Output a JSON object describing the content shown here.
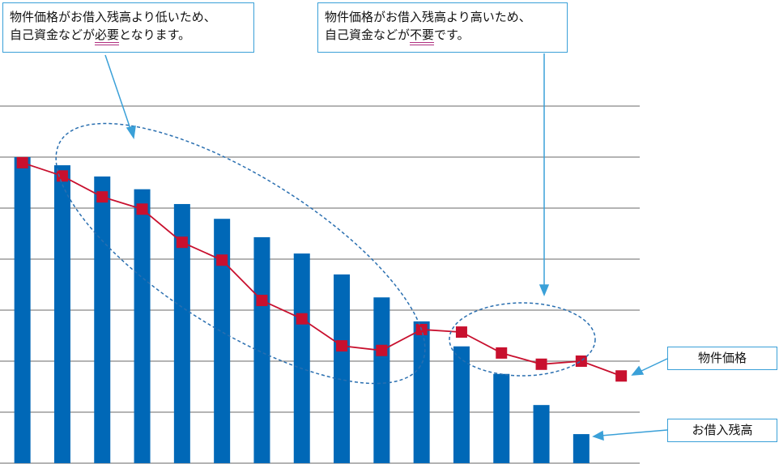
{
  "chart_data": {
    "type": "bar-line",
    "categories": [
      null,
      null,
      null,
      null,
      null,
      null,
      null,
      null,
      null,
      null,
      null,
      null,
      null,
      null,
      null,
      null
    ],
    "series": [
      {
        "name": "お借入残高",
        "type": "bar",
        "color": "#0068b7",
        "values": [
          6.0,
          5.84,
          5.62,
          5.37,
          5.08,
          4.79,
          4.43,
          4.11,
          3.7,
          3.25,
          2.78,
          2.29,
          1.75,
          1.14,
          0.57,
          null
        ]
      },
      {
        "name": "物件価格",
        "type": "line",
        "color": "#c8102e",
        "values": [
          5.89,
          5.63,
          5.22,
          4.98,
          4.33,
          3.98,
          3.19,
          2.83,
          2.3,
          2.21,
          2.62,
          2.57,
          2.16,
          1.94,
          2.0,
          1.71
        ]
      }
    ],
    "ylim": [
      0,
      7
    ],
    "yticks": [
      0,
      1,
      2,
      3,
      4,
      5,
      6,
      7
    ],
    "grid": true,
    "annotations": [
      {
        "line1": "物件価格がお借入残高より低いため、",
        "pre": "自己資金などが",
        "em": "必要",
        "post": "となります。"
      },
      {
        "line1": "物件価格がお借入残高より高いため、",
        "pre": "自己資金などが",
        "em": "不要",
        "post": "です。"
      }
    ]
  }
}
